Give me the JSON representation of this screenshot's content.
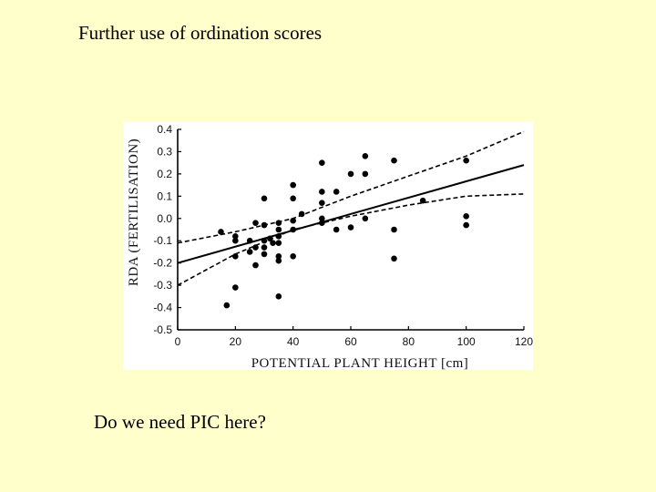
{
  "slide": {
    "title": "Further use of ordination scores",
    "note": "Do we need PIC here?"
  },
  "chart_data": {
    "type": "scatter",
    "xlabel": "POTENTIAL PLANT HEIGHT [cm]",
    "ylabel": "RDA (FERTILISATION)",
    "xlim": [
      0,
      120
    ],
    "ylim": [
      -0.5,
      0.4
    ],
    "x_ticks": [
      "0",
      "20",
      "40",
      "60",
      "80",
      "100",
      "120"
    ],
    "y_ticks": [
      "0.4",
      "0.3",
      "0.2",
      "0.1",
      "0.0",
      "-0.1",
      "-0.2",
      "-0.3",
      "-0.4",
      "-0.5"
    ],
    "grid": false,
    "points": [
      {
        "x": 15,
        "y": -0.06
      },
      {
        "x": 17,
        "y": -0.39
      },
      {
        "x": 20,
        "y": -0.08
      },
      {
        "x": 20,
        "y": -0.1
      },
      {
        "x": 20,
        "y": -0.17
      },
      {
        "x": 20,
        "y": -0.31
      },
      {
        "x": 25,
        "y": -0.15
      },
      {
        "x": 25,
        "y": -0.1
      },
      {
        "x": 27,
        "y": -0.02
      },
      {
        "x": 27,
        "y": -0.13
      },
      {
        "x": 27,
        "y": -0.21
      },
      {
        "x": 30,
        "y": 0.09
      },
      {
        "x": 30,
        "y": -0.03
      },
      {
        "x": 30,
        "y": -0.1
      },
      {
        "x": 30,
        "y": -0.13
      },
      {
        "x": 30,
        "y": -0.16
      },
      {
        "x": 32,
        "y": -0.09
      },
      {
        "x": 33,
        "y": -0.11
      },
      {
        "x": 35,
        "y": -0.02
      },
      {
        "x": 35,
        "y": -0.05
      },
      {
        "x": 35,
        "y": -0.08
      },
      {
        "x": 35,
        "y": -0.11
      },
      {
        "x": 35,
        "y": -0.17
      },
      {
        "x": 35,
        "y": -0.19
      },
      {
        "x": 35,
        "y": -0.35
      },
      {
        "x": 40,
        "y": 0.15
      },
      {
        "x": 40,
        "y": 0.09
      },
      {
        "x": 40,
        "y": -0.01
      },
      {
        "x": 40,
        "y": -0.05
      },
      {
        "x": 40,
        "y": -0.17
      },
      {
        "x": 43,
        "y": 0.02
      },
      {
        "x": 50,
        "y": 0.25
      },
      {
        "x": 50,
        "y": 0.12
      },
      {
        "x": 50,
        "y": 0.07
      },
      {
        "x": 50,
        "y": 0.0
      },
      {
        "x": 50,
        "y": -0.02
      },
      {
        "x": 55,
        "y": 0.12
      },
      {
        "x": 55,
        "y": -0.05
      },
      {
        "x": 60,
        "y": 0.2
      },
      {
        "x": 60,
        "y": -0.04
      },
      {
        "x": 65,
        "y": 0.28
      },
      {
        "x": 65,
        "y": 0.2
      },
      {
        "x": 65,
        "y": 0.0
      },
      {
        "x": 75,
        "y": 0.26
      },
      {
        "x": 75,
        "y": -0.05
      },
      {
        "x": 75,
        "y": -0.18
      },
      {
        "x": 85,
        "y": 0.08
      },
      {
        "x": 100,
        "y": 0.26
      },
      {
        "x": 100,
        "y": 0.01
      },
      {
        "x": 100,
        "y": -0.03
      }
    ],
    "regression_line": {
      "x": [
        0,
        120
      ],
      "y": [
        -0.2,
        0.24
      ]
    },
    "confidence_upper": {
      "x": [
        0,
        20,
        40,
        60,
        80,
        100,
        120
      ],
      "y": [
        -0.11,
        -0.06,
        0.0,
        0.1,
        0.19,
        0.28,
        0.39
      ]
    },
    "confidence_lower": {
      "x": [
        0,
        20,
        40,
        60,
        80,
        100,
        120
      ],
      "y": [
        -0.3,
        -0.16,
        -0.05,
        0.01,
        0.06,
        0.1,
        0.11
      ]
    },
    "colors": {
      "points": "#000000",
      "line": "#000000",
      "background": "#ffffff",
      "slide_background": "#ffffcc"
    }
  }
}
